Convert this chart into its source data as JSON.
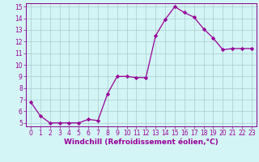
{
  "x": [
    0,
    1,
    2,
    3,
    4,
    5,
    6,
    7,
    8,
    9,
    10,
    11,
    12,
    13,
    14,
    15,
    16,
    17,
    18,
    19,
    20,
    21,
    22,
    23
  ],
  "y": [
    6.8,
    5.6,
    5.0,
    5.0,
    5.0,
    5.0,
    5.3,
    5.2,
    7.5,
    9.0,
    9.0,
    8.9,
    8.9,
    12.5,
    13.9,
    15.0,
    14.5,
    14.1,
    13.1,
    12.3,
    11.3,
    11.4,
    11.4,
    11.4
  ],
  "line_color": "#990099",
  "marker": "D",
  "marker_size": 2.2,
  "bg_color": "#d4f5f5",
  "grid_color": "#aacccc",
  "xlabel": "Windchill (Refroidissement éolien,°C)",
  "xlabel_fontsize": 6.5,
  "ylim_min": 4.7,
  "ylim_max": 15.3,
  "xlim_min": -0.5,
  "xlim_max": 23.5,
  "yticks": [
    5,
    6,
    7,
    8,
    9,
    10,
    11,
    12,
    13,
    14,
    15
  ],
  "xticks": [
    0,
    1,
    2,
    3,
    4,
    5,
    6,
    7,
    8,
    9,
    10,
    11,
    12,
    13,
    14,
    15,
    16,
    17,
    18,
    19,
    20,
    21,
    22,
    23
  ],
  "tick_fontsize": 5.5,
  "spine_color": "#880088",
  "linewidth": 0.9
}
